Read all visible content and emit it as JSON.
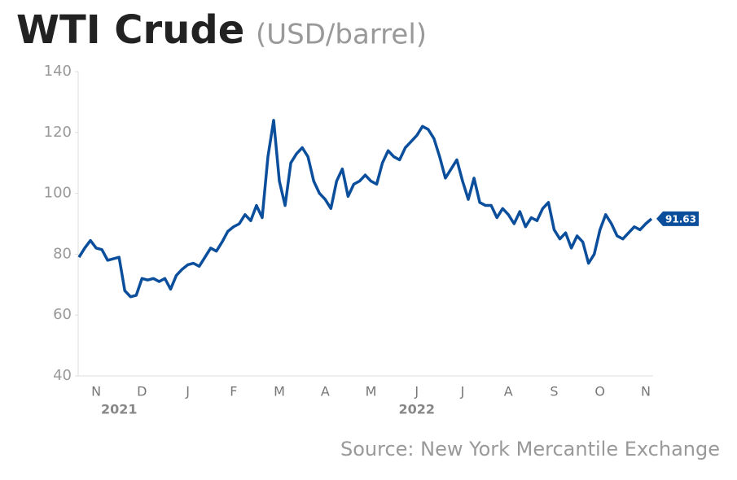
{
  "chart_data": {
    "type": "line",
    "title": "WTI Crude",
    "subtitle": "(USD/barrel)",
    "source": "Source: New York Mercantile Exchange",
    "categories": [
      null,
      null,
      null,
      "N",
      null,
      null,
      null,
      null,
      null,
      null,
      null,
      "D",
      null,
      null,
      null,
      null,
      null,
      null,
      null,
      "J",
      null,
      null,
      null,
      null,
      null,
      null,
      null,
      "F",
      null,
      null,
      null,
      null,
      null,
      null,
      null,
      "M",
      null,
      null,
      null,
      null,
      null,
      null,
      null,
      "A",
      null,
      null,
      null,
      null,
      null,
      null,
      null,
      "M",
      null,
      null,
      null,
      null,
      null,
      null,
      null,
      "J",
      null,
      null,
      null,
      null,
      null,
      null,
      null,
      "J",
      null,
      null,
      null,
      null,
      null,
      null,
      null,
      "A",
      null,
      null,
      null,
      null,
      null,
      null,
      null,
      "S",
      null,
      null,
      null,
      null,
      null,
      null,
      null,
      "O",
      null,
      null,
      null,
      null,
      null,
      null,
      null,
      "N",
      null
    ],
    "year_labels": [
      null,
      null,
      null,
      null,
      null,
      null,
      null,
      "2021",
      null,
      null,
      null,
      null,
      null,
      null,
      null,
      null,
      null,
      null,
      null,
      null,
      null,
      null,
      null,
      null,
      null,
      null,
      null,
      null,
      null,
      null,
      null,
      null,
      null,
      null,
      null,
      null,
      null,
      null,
      null,
      null,
      null,
      null,
      null,
      null,
      null,
      null,
      null,
      null,
      null,
      null,
      null,
      null,
      null,
      null,
      null,
      null,
      null,
      null,
      null,
      "2022",
      null,
      null,
      null,
      null,
      null,
      null,
      null,
      null,
      null,
      null,
      null,
      null,
      null,
      null,
      null,
      null,
      null,
      null,
      null,
      null,
      null,
      null,
      null,
      null,
      null,
      null,
      null,
      null,
      null,
      null,
      null,
      null,
      null,
      null,
      null,
      null,
      null,
      null,
      null,
      null,
      null
    ],
    "series": [
      {
        "name": "WTI Crude",
        "color": "#0b4f9c",
        "values": [
          79,
          82,
          84.5,
          82,
          81.5,
          78,
          78.5,
          79,
          68,
          66,
          66.5,
          72,
          71.5,
          72,
          71,
          72,
          68.5,
          73,
          75,
          76.5,
          77,
          76,
          79,
          82,
          81,
          84,
          87.5,
          89,
          90,
          93,
          91,
          96,
          92,
          112,
          124,
          104,
          96,
          110,
          113,
          115,
          112,
          104,
          100,
          98,
          95,
          104,
          108,
          99,
          103,
          104,
          106,
          104,
          103,
          110,
          114,
          112,
          111,
          115,
          117,
          119,
          122,
          121,
          118,
          112,
          105,
          108,
          111,
          104,
          98,
          105,
          97,
          96,
          96,
          92,
          95,
          93,
          90,
          94,
          89,
          92,
          91,
          95,
          97,
          88,
          85,
          87,
          82,
          86,
          84,
          77,
          80,
          88,
          93,
          90,
          86,
          85,
          87,
          89,
          88,
          90,
          91.63
        ],
        "value_labels": [
          null,
          null,
          null,
          null,
          null,
          null,
          null,
          null,
          null,
          null,
          null,
          null,
          null,
          null,
          null,
          null,
          null,
          null,
          null,
          null,
          null,
          null,
          null,
          null,
          null,
          null,
          null,
          null,
          null,
          null,
          null,
          null,
          null,
          null,
          null,
          null,
          null,
          null,
          null,
          null,
          null,
          null,
          null,
          null,
          null,
          null,
          null,
          null,
          null,
          null,
          null,
          null,
          null,
          null,
          null,
          null,
          null,
          null,
          null,
          null,
          null,
          null,
          null,
          null,
          null,
          null,
          null,
          null,
          null,
          null,
          null,
          null,
          null,
          null,
          null,
          null,
          null,
          null,
          null,
          null,
          null,
          null,
          null,
          null,
          null,
          null,
          null,
          null,
          null,
          null,
          null,
          null,
          null,
          null,
          null,
          null,
          null,
          null,
          null,
          null,
          "91.63"
        ]
      }
    ],
    "ylim": [
      40,
      140
    ],
    "yticks": [
      40,
      60,
      80,
      100,
      120,
      140
    ],
    "grid": false
  }
}
